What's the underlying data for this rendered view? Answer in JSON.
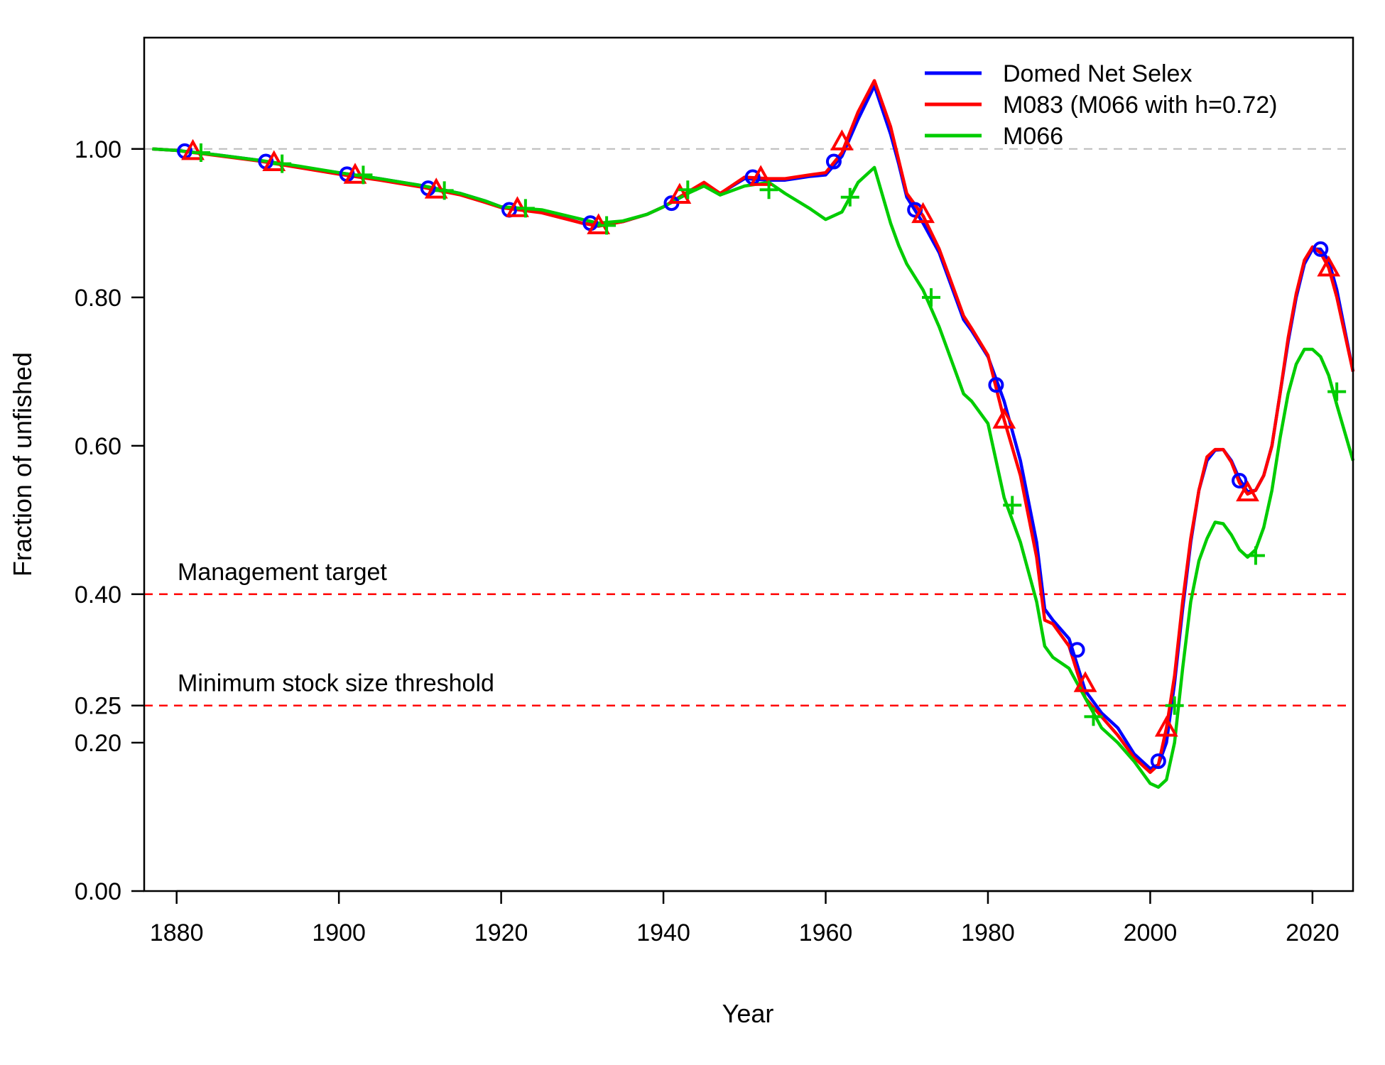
{
  "chart_data": {
    "type": "line",
    "title": "",
    "xlabel": "Year",
    "ylabel": "Fraction of unfished",
    "xlim": [
      1876,
      2025
    ],
    "ylim": [
      0,
      1.15
    ],
    "x_ticks": [
      1880,
      1900,
      1920,
      1940,
      1960,
      1980,
      2000,
      2020
    ],
    "y_ticks": [
      0.0,
      0.2,
      0.25,
      0.4,
      0.6,
      0.8,
      1.0
    ],
    "y_tick_labels": [
      "0.00",
      "0.20",
      "0.25",
      "0.40",
      "0.60",
      "0.80",
      "1.00"
    ],
    "grid": false,
    "legend_position": "top-right",
    "reference_lines": [
      {
        "y": 1.0,
        "color": "#bbbbbb",
        "label": ""
      },
      {
        "y": 0.4,
        "color": "#ff0000",
        "label": "Management target"
      },
      {
        "y": 0.25,
        "color": "#ff0000",
        "label": "Minimum stock size threshold"
      }
    ],
    "series": [
      {
        "name": "Domed Net Selex",
        "color": "#0000ff",
        "marker": "circle",
        "x": [
          1877,
          1880,
          1885,
          1890,
          1895,
          1900,
          1905,
          1910,
          1915,
          1918,
          1920,
          1925,
          1930,
          1932,
          1935,
          1938,
          1940,
          1943,
          1945,
          1947,
          1950,
          1953,
          1955,
          1958,
          1960,
          1962,
          1964,
          1966,
          1968,
          1969,
          1970,
          1972,
          1974,
          1976,
          1977,
          1978,
          1980,
          1982,
          1984,
          1986,
          1987,
          1988,
          1990,
          1992,
          1994,
          1996,
          1998,
          2000,
          2001,
          2002,
          2003,
          2004,
          2005,
          2006,
          2007,
          2008,
          2009,
          2010,
          2011,
          2012,
          2013,
          2014,
          2015,
          2016,
          2017,
          2018,
          2019,
          2020,
          2021,
          2022,
          2023,
          2025
        ],
        "y": [
          1.0,
          0.998,
          0.992,
          0.985,
          0.976,
          0.968,
          0.96,
          0.951,
          0.94,
          0.93,
          0.922,
          0.915,
          0.9,
          0.897,
          0.902,
          0.912,
          0.922,
          0.94,
          0.953,
          0.94,
          0.96,
          0.958,
          0.958,
          0.963,
          0.965,
          0.99,
          1.04,
          1.085,
          1.02,
          0.98,
          0.935,
          0.9,
          0.86,
          0.8,
          0.77,
          0.755,
          0.72,
          0.66,
          0.58,
          0.47,
          0.38,
          0.365,
          0.34,
          0.27,
          0.24,
          0.22,
          0.185,
          0.165,
          0.17,
          0.2,
          0.28,
          0.38,
          0.47,
          0.54,
          0.58,
          0.594,
          0.595,
          0.58,
          0.555,
          0.538,
          0.54,
          0.56,
          0.6,
          0.67,
          0.74,
          0.8,
          0.845,
          0.865,
          0.865,
          0.85,
          0.81,
          0.7
        ],
        "marker_x": [
          1881,
          1891,
          1901,
          1911,
          1921,
          1931,
          1941,
          1951,
          1961,
          1971,
          1981,
          1991,
          2001,
          2011,
          2021
        ],
        "marker_y": [
          0.997,
          0.983,
          0.966,
          0.947,
          0.918,
          0.9,
          0.927,
          0.962,
          0.983,
          0.918,
          0.682,
          0.325,
          0.175,
          0.553,
          0.865
        ]
      },
      {
        "name": "M083 (M066 with h=0.72)",
        "color": "#ff0000",
        "marker": "triangle",
        "x": [
          1877,
          1880,
          1885,
          1890,
          1895,
          1900,
          1905,
          1910,
          1915,
          1918,
          1920,
          1925,
          1930,
          1932,
          1935,
          1938,
          1940,
          1943,
          1945,
          1947,
          1950,
          1953,
          1955,
          1958,
          1960,
          1962,
          1964,
          1966,
          1968,
          1969,
          1970,
          1972,
          1974,
          1976,
          1977,
          1978,
          1980,
          1982,
          1984,
          1986,
          1987,
          1988,
          1990,
          1992,
          1994,
          1996,
          1998,
          2000,
          2001,
          2002,
          2003,
          2004,
          2005,
          2006,
          2007,
          2008,
          2009,
          2010,
          2011,
          2012,
          2013,
          2014,
          2015,
          2016,
          2017,
          2018,
          2019,
          2020,
          2021,
          2022,
          2023,
          2025
        ],
        "y": [
          1.0,
          0.998,
          0.991,
          0.984,
          0.975,
          0.966,
          0.958,
          0.949,
          0.938,
          0.928,
          0.921,
          0.914,
          0.9,
          0.896,
          0.902,
          0.912,
          0.922,
          0.942,
          0.955,
          0.94,
          0.962,
          0.96,
          0.96,
          0.965,
          0.968,
          0.995,
          1.05,
          1.092,
          1.03,
          0.985,
          0.94,
          0.91,
          0.865,
          0.805,
          0.775,
          0.758,
          0.722,
          0.635,
          0.56,
          0.45,
          0.365,
          0.36,
          0.33,
          0.26,
          0.235,
          0.21,
          0.18,
          0.16,
          0.17,
          0.22,
          0.29,
          0.39,
          0.475,
          0.54,
          0.585,
          0.595,
          0.595,
          0.578,
          0.55,
          0.535,
          0.54,
          0.56,
          0.6,
          0.67,
          0.745,
          0.805,
          0.85,
          0.868,
          0.86,
          0.84,
          0.8,
          0.7
        ],
        "marker_x": [
          1882,
          1892,
          1902,
          1912,
          1922,
          1932,
          1942,
          1952,
          1962,
          1972,
          1982,
          1992,
          2002,
          2012,
          2022
        ],
        "marker_y": [
          0.997,
          0.982,
          0.965,
          0.945,
          0.92,
          0.897,
          0.938,
          0.962,
          1.01,
          0.912,
          0.635,
          0.28,
          0.22,
          0.537,
          0.84
        ]
      },
      {
        "name": "M066",
        "color": "#00cc00",
        "marker": "plus",
        "x": [
          1877,
          1880,
          1885,
          1890,
          1895,
          1900,
          1905,
          1910,
          1915,
          1918,
          1920,
          1925,
          1930,
          1932,
          1935,
          1938,
          1940,
          1943,
          1945,
          1947,
          1950,
          1953,
          1955,
          1958,
          1960,
          1962,
          1964,
          1966,
          1968,
          1969,
          1970,
          1972,
          1974,
          1976,
          1977,
          1978,
          1980,
          1982,
          1984,
          1986,
          1987,
          1988,
          1990,
          1992,
          1994,
          1996,
          1998,
          2000,
          2001,
          2002,
          2003,
          2004,
          2005,
          2006,
          2007,
          2008,
          2009,
          2010,
          2011,
          2012,
          2013,
          2014,
          2015,
          2016,
          2017,
          2018,
          2019,
          2020,
          2021,
          2022,
          2023,
          2025
        ],
        "y": [
          1.0,
          0.998,
          0.992,
          0.985,
          0.977,
          0.968,
          0.96,
          0.951,
          0.94,
          0.93,
          0.922,
          0.918,
          0.905,
          0.9,
          0.903,
          0.912,
          0.922,
          0.94,
          0.95,
          0.938,
          0.95,
          0.955,
          0.94,
          0.92,
          0.905,
          0.915,
          0.955,
          0.975,
          0.9,
          0.87,
          0.845,
          0.81,
          0.76,
          0.7,
          0.67,
          0.66,
          0.63,
          0.53,
          0.47,
          0.39,
          0.33,
          0.315,
          0.3,
          0.26,
          0.22,
          0.2,
          0.175,
          0.145,
          0.14,
          0.15,
          0.2,
          0.3,
          0.39,
          0.445,
          0.475,
          0.497,
          0.495,
          0.48,
          0.46,
          0.45,
          0.46,
          0.49,
          0.54,
          0.61,
          0.67,
          0.71,
          0.73,
          0.73,
          0.72,
          0.695,
          0.655,
          0.58
        ],
        "marker_x": [
          1883,
          1893,
          1903,
          1913,
          1923,
          1933,
          1943,
          1953,
          1963,
          1973,
          1983,
          1993,
          2003,
          2013,
          2023
        ],
        "marker_y": [
          0.995,
          0.98,
          0.965,
          0.944,
          0.92,
          0.897,
          0.945,
          0.945,
          0.935,
          0.8,
          0.52,
          0.235,
          0.25,
          0.452,
          0.673
        ]
      }
    ]
  }
}
